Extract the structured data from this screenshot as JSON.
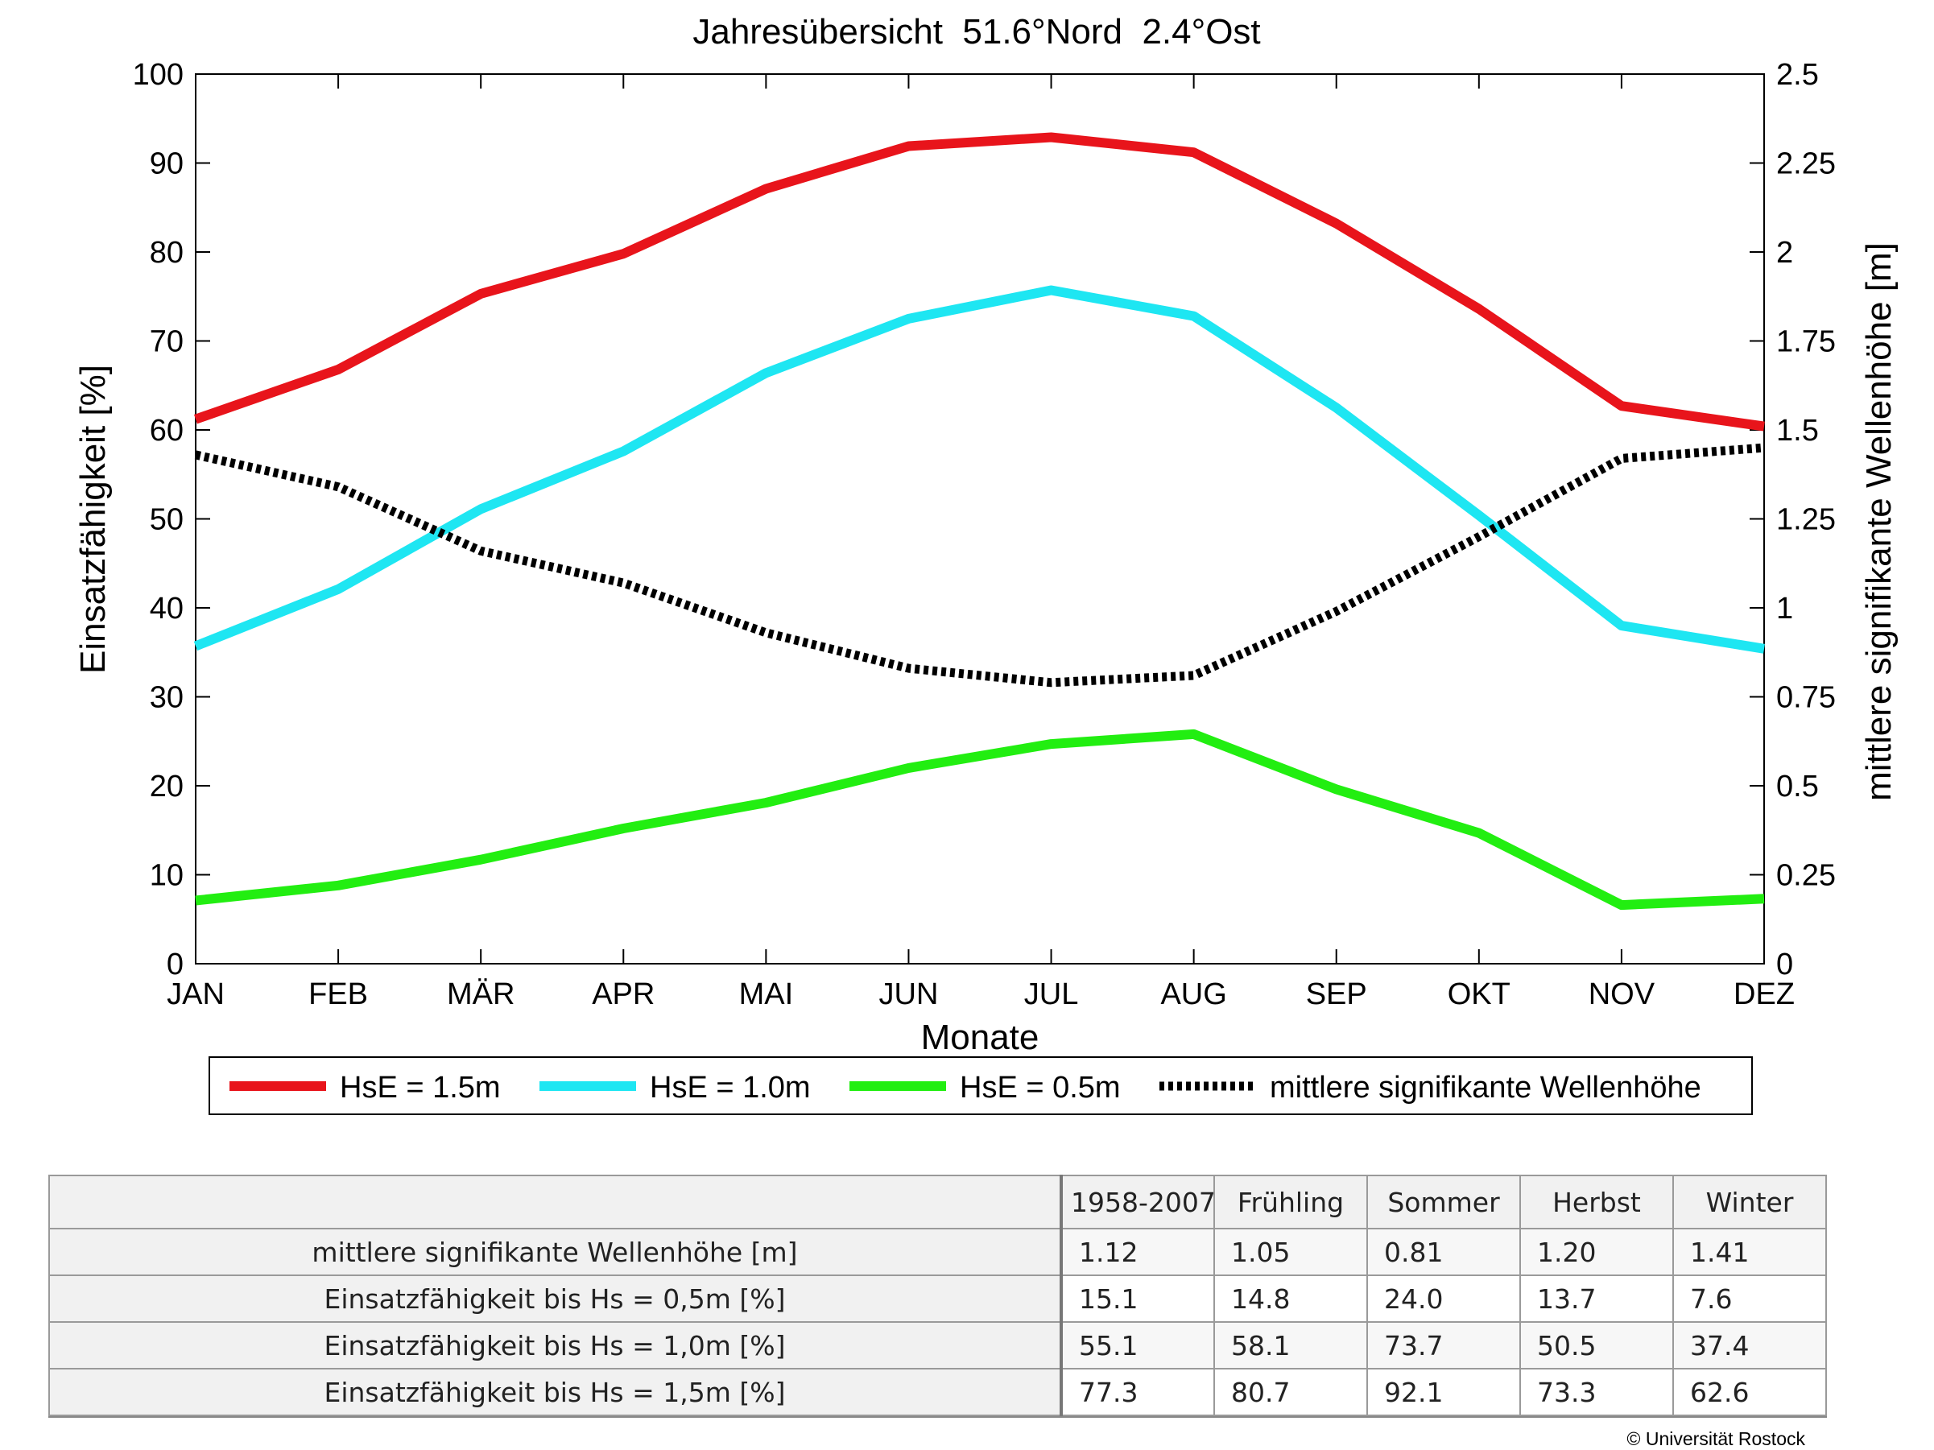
{
  "chart_data": {
    "type": "line",
    "title": "Jahresübersicht  51.6°Nord  2.4°Ost",
    "xlabel": "Monate",
    "ylabel": "Einsatzfähigkeit [%]",
    "y2label": "mittlere signifikante Wellenhöhe [m]",
    "categories": [
      "JAN",
      "FEB",
      "MÄR",
      "APR",
      "MAI",
      "JUN",
      "JUL",
      "AUG",
      "SEP",
      "OKT",
      "NOV",
      "DEZ"
    ],
    "ylim": [
      0,
      100
    ],
    "yticks": [
      "0",
      "10",
      "20",
      "30",
      "40",
      "50",
      "60",
      "70",
      "80",
      "90",
      "100"
    ],
    "y2lim": [
      0,
      2.5
    ],
    "y2ticks": [
      "0",
      "0.25",
      "0.5",
      "0.75",
      "1",
      "1.25",
      "1.5",
      "1.75",
      "2",
      "2.25",
      "2.5"
    ],
    "grid": false,
    "legend_position": "bottom",
    "series": [
      {
        "name": "HsE = 1.5m",
        "axis": "left",
        "color": "#e8141b",
        "style": "solid",
        "values": [
          61.2,
          66.8,
          75.3,
          79.8,
          87.1,
          91.9,
          92.9,
          91.2,
          83.2,
          73.6,
          62.7,
          60.4
        ]
      },
      {
        "name": "HsE = 1.0m",
        "axis": "left",
        "color": "#1ee6f2",
        "style": "solid",
        "values": [
          35.7,
          42.1,
          51.1,
          57.6,
          66.4,
          72.5,
          75.7,
          72.8,
          62.5,
          50.4,
          38.0,
          35.4
        ]
      },
      {
        "name": "HsE = 0.5m",
        "axis": "left",
        "color": "#22ee11",
        "style": "solid",
        "values": [
          7.1,
          8.8,
          11.7,
          15.2,
          18.1,
          22.0,
          24.7,
          25.8,
          19.6,
          14.7,
          6.6,
          7.3
        ]
      },
      {
        "name": "mittlere signifikante Wellenhöhe",
        "axis": "right",
        "color": "#000000",
        "style": "dotted",
        "values": [
          1.43,
          1.34,
          1.16,
          1.07,
          0.93,
          0.83,
          0.79,
          0.81,
          0.99,
          1.2,
          1.42,
          1.45
        ]
      }
    ]
  },
  "table": {
    "headers": [
      "1958-2007",
      "Frühling",
      "Sommer",
      "Herbst",
      "Winter"
    ],
    "rows": [
      {
        "label": "mittlere signifikante Wellenhöhe [m]",
        "values": [
          "1.12",
          "1.05",
          "0.81",
          "1.20",
          "1.41"
        ]
      },
      {
        "label": "Einsatzfähigkeit bis Hs = 0,5m [%]",
        "values": [
          "15.1",
          "14.8",
          "24.0",
          "13.7",
          "7.6"
        ]
      },
      {
        "label": "Einsatzfähigkeit bis Hs = 1,0m [%]",
        "values": [
          "55.1",
          "58.1",
          "73.7",
          "50.5",
          "37.4"
        ]
      },
      {
        "label": "Einsatzfähigkeit bis Hs = 1,5m [%]",
        "values": [
          "77.3",
          "80.7",
          "92.1",
          "73.3",
          "62.6"
        ]
      }
    ]
  },
  "footer": {
    "copyright": "© Universität Rostock"
  }
}
